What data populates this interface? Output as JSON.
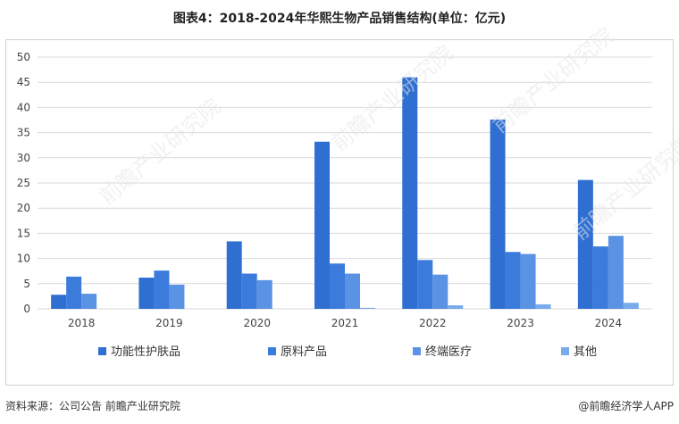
{
  "chart_data": {
    "type": "bar",
    "title": "图表4：2018-2024年华熙生物产品销售结构(单位：亿元)",
    "categories": [
      "2018",
      "2019",
      "2020",
      "2021",
      "2022",
      "2023",
      "2024"
    ],
    "series": [
      {
        "name": "功能性护肤品",
        "color": "#2e6fd1",
        "values": [
          2.8,
          6.2,
          13.4,
          33.2,
          46.0,
          37.6,
          25.6
        ]
      },
      {
        "name": "原料产品",
        "color": "#3b7bdc",
        "values": [
          6.4,
          7.6,
          7.0,
          9.0,
          9.7,
          11.3,
          12.4
        ]
      },
      {
        "name": "终端医疗",
        "color": "#5a93e3",
        "values": [
          3.0,
          4.8,
          5.7,
          7.0,
          6.8,
          10.9,
          14.5
        ]
      },
      {
        "name": "其他",
        "color": "#78aaec",
        "values": [
          0,
          0,
          0,
          0.2,
          0.7,
          0.9,
          1.2
        ]
      }
    ],
    "yticks": [
      0,
      5,
      10,
      15,
      20,
      25,
      30,
      35,
      40,
      45,
      50
    ],
    "ylim": [
      0,
      50
    ],
    "grid": true,
    "legend_position": "bottom"
  },
  "footer": {
    "source": "资料来源：公司公告 前瞻产业研究院",
    "brand": "@前瞻经济学人APP"
  },
  "watermark": "前瞻产业研究院"
}
